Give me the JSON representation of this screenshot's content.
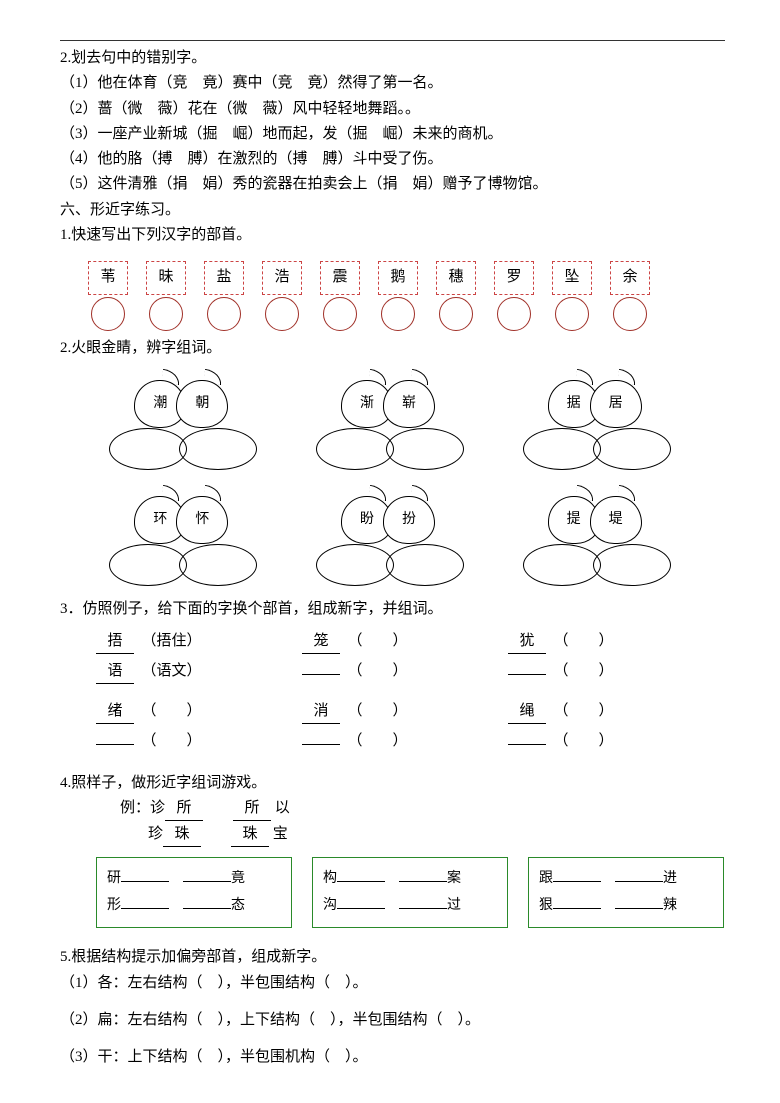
{
  "ex2": {
    "title": "2.划去句中的错别字。",
    "items": [
      "（1）他在体育（竞　竟）赛中（竞　竟）然得了第一名。",
      "（2）蔷（微　薇）花在（微　薇）风中轻轻地舞蹈。。",
      "（3）一座产业新城（掘　崛）地而起，发（掘　崛）未来的商机。",
      "（4）他的胳（搏　膊）在激烈的（搏　膊）斗中受了伤。",
      "（5）这件清雅（捐　娟）秀的瓷器在拍卖会上（捐　娟）赠予了博物馆。"
    ]
  },
  "section6": "六、形近字练习。",
  "q1": {
    "title": "1.快速写出下列汉字的部首。",
    "chars": [
      "苇",
      "昧",
      "盐",
      "浩",
      "震",
      "鹅",
      "穗",
      "罗",
      "坠",
      "余"
    ],
    "box_border": "#c04848",
    "circle_border": "#a03028"
  },
  "q2": {
    "title": "2.火眼金睛，辨字组词。",
    "pairs": [
      [
        "潮",
        "朝"
      ],
      [
        "渐",
        "崭"
      ],
      [
        "据",
        "居"
      ],
      [
        "环",
        "怀"
      ],
      [
        "盼",
        "扮"
      ],
      [
        "提",
        "堤"
      ]
    ]
  },
  "q3": {
    "title": "3．仿照例子，给下面的字换个部首，组成新字，并组词。",
    "examples": [
      {
        "ch": "捂",
        "word": "（捂住）"
      },
      {
        "ch": "笼",
        "word": "（　　）"
      },
      {
        "ch": "犹",
        "word": "（　　）"
      }
    ],
    "examples2": [
      {
        "ch": "语",
        "word": "（语文）"
      },
      {
        "ch": "",
        "word": "（　　）"
      },
      {
        "ch": "",
        "word": "（　　）"
      }
    ],
    "row3": [
      {
        "ch": "绪",
        "word": "（　　）"
      },
      {
        "ch": "消",
        "word": "（　　）"
      },
      {
        "ch": "绳",
        "word": "（　　）"
      }
    ],
    "row4": [
      {
        "ch": "",
        "word": "（　　）"
      },
      {
        "ch": "",
        "word": "（　　）"
      },
      {
        "ch": "",
        "word": "（　　）"
      }
    ]
  },
  "q4": {
    "title": "4.照样子，做形近字组词游戏。",
    "ex_label": "例：诊",
    "ex_a1": "所",
    "ex_a2": "所",
    "ex_a3": "以",
    "ex_b0": "珍",
    "ex_b1": "珠",
    "ex_b2": "珠",
    "ex_b3": "宝",
    "boxes": [
      {
        "a1": "研",
        "a2": "竟",
        "b1": "形",
        "b2": "态"
      },
      {
        "a1": "构",
        "a2": "案",
        "b1": "沟",
        "b2": "过"
      },
      {
        "a1": "跟",
        "a2": "进",
        "b1": "狠",
        "b2": "辣"
      }
    ],
    "box_border": "#2a8a2a"
  },
  "q5": {
    "title": "5.根据结构提示加偏旁部首，组成新字。",
    "items": [
      "（1）各：左右结构（　），半包围结构（　）。",
      "（2）扁：左右结构（　），上下结构（　），半包围结构（　）。",
      "（3）干：上下结构（　），半包围机构（　）。"
    ]
  }
}
